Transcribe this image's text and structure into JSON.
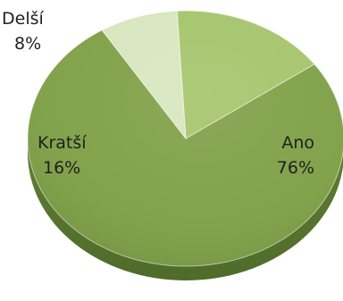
{
  "chart_data": {
    "type": "pie",
    "title": "",
    "slices": [
      {
        "category": "Ano",
        "value": 76,
        "label": "76%",
        "color": "#7E9F45"
      },
      {
        "category": "Kratší",
        "value": 16,
        "label": "16%",
        "color": "#A4C46A"
      },
      {
        "category": "Delší",
        "value": 8,
        "label": "8%",
        "color": "#D7E6BE"
      }
    ],
    "legend": "none",
    "style": "3d-tilted"
  }
}
